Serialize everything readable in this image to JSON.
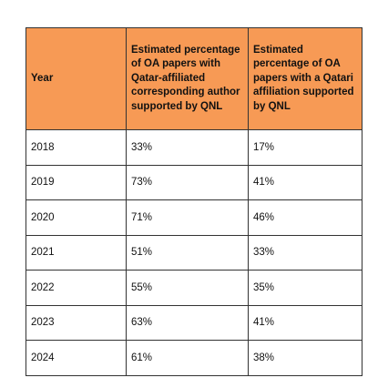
{
  "table": {
    "headers": [
      "Year",
      "Estimated percentage of OA papers with Qatar-affiliated corresponding author supported by QNL",
      "Estimated percentage of OA papers with a Qatari affiliation supported by QNL"
    ],
    "rows": [
      [
        "2018",
        "33%",
        "17%"
      ],
      [
        "2019",
        "73%",
        "41%"
      ],
      [
        "2020",
        "71%",
        "46%"
      ],
      [
        "2021",
        "51%",
        "33%"
      ],
      [
        "2022",
        "55%",
        "35%"
      ],
      [
        "2023",
        "63%",
        "41%"
      ],
      [
        "2024",
        "61%",
        "38%"
      ]
    ],
    "colors": {
      "header_background": "#f79a55",
      "border": "#333333"
    }
  }
}
